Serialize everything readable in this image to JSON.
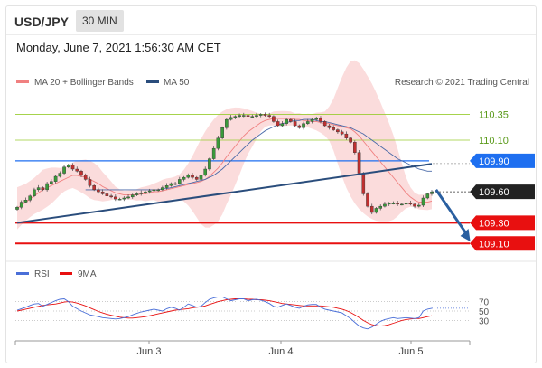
{
  "header": {
    "symbol": "USD/JPY",
    "timeframe": "30 MIN"
  },
  "datetime": "Monday, June 7, 2021 1:56:30 AM CET",
  "legend": {
    "ma20": "MA 20 + Bollinger Bands",
    "ma50": "MA 50",
    "credit": "Research © 2021 Trading Central"
  },
  "rsi_legend": {
    "rsi": "RSI",
    "ma": "9MA"
  },
  "colors": {
    "ma20": "#f08080",
    "ma50": "#2a4d7c",
    "resistance": "#1e6ff0",
    "support": "#e81010",
    "target": "#9acd32",
    "current": "#222222"
  },
  "chart_data": [
    {
      "type": "line",
      "name": "price",
      "ylim": [
        109.05,
        110.45
      ],
      "xticks": [
        "Jun 3",
        "Jun 4",
        "Jun 5"
      ],
      "levels": [
        {
          "value": 110.35,
          "label": "110.35",
          "kind": "target"
        },
        {
          "value": 110.1,
          "label": "110.10",
          "kind": "target"
        },
        {
          "value": 109.9,
          "label": "109.90",
          "kind": "resistance"
        },
        {
          "value": 109.6,
          "label": "109.60",
          "kind": "current"
        },
        {
          "value": 109.3,
          "label": "109.30",
          "kind": "support"
        },
        {
          "value": 109.1,
          "label": "109.10",
          "kind": "support"
        }
      ],
      "trendline": [
        [
          0,
          109.3
        ],
        [
          97,
          109.87
        ]
      ],
      "forecast_arrow": [
        [
          98,
          109.62
        ],
        [
          106,
          109.12
        ]
      ],
      "series": [
        {
          "name": "price",
          "values": [
            109.45,
            109.5,
            109.52,
            109.56,
            109.62,
            109.64,
            109.62,
            109.68,
            109.7,
            109.75,
            109.78,
            109.84,
            109.86,
            109.82,
            109.8,
            109.76,
            109.72,
            109.66,
            109.62,
            109.6,
            109.58,
            109.56,
            109.55,
            109.53,
            109.53,
            109.54,
            109.55,
            109.57,
            109.58,
            109.59,
            109.6,
            109.61,
            109.62,
            109.62,
            109.64,
            109.66,
            109.68,
            109.68,
            109.72,
            109.74,
            109.76,
            109.74,
            109.72,
            109.76,
            109.82,
            109.92,
            110.02,
            110.12,
            110.22,
            110.3,
            110.32,
            110.33,
            110.34,
            110.34,
            110.33,
            110.33,
            110.34,
            110.35,
            110.34,
            110.33,
            110.28,
            110.24,
            110.26,
            110.3,
            110.28,
            110.24,
            110.22,
            110.26,
            110.28,
            110.3,
            110.31,
            110.28,
            110.24,
            110.22,
            110.2,
            110.18,
            110.16,
            110.12,
            110.08,
            109.98,
            109.78,
            109.58,
            109.46,
            109.4,
            109.44,
            109.46,
            109.48,
            109.49,
            109.49,
            109.48,
            109.48,
            109.49,
            109.48,
            109.46,
            109.47,
            109.54,
            109.58,
            109.6
          ]
        },
        {
          "name": "MA 20",
          "values": [
            109.44,
            109.47,
            109.5,
            109.53,
            109.56,
            109.59,
            109.62,
            109.64,
            109.66,
            109.68,
            109.7,
            109.72,
            109.74,
            109.76,
            109.76,
            109.75,
            109.74,
            109.72,
            109.7,
            109.68,
            109.65,
            109.63,
            109.61,
            109.59,
            109.58,
            109.57,
            109.57,
            109.57,
            109.57,
            109.58,
            109.58,
            109.59,
            109.6,
            109.6,
            109.61,
            109.62,
            109.63,
            109.64,
            109.65,
            109.66,
            109.67,
            109.68,
            109.69,
            109.7,
            109.72,
            109.75,
            109.79,
            109.83,
            109.88,
            109.94,
            109.99,
            110.04,
            110.09,
            110.14,
            110.18,
            110.21,
            110.24,
            110.27,
            110.29,
            110.3,
            110.31,
            110.31,
            110.31,
            110.31,
            110.31,
            110.3,
            110.3,
            110.29,
            110.29,
            110.28,
            110.28,
            110.27,
            110.26,
            110.26,
            110.25,
            110.24,
            110.23,
            110.22,
            110.21,
            110.18,
            110.14,
            110.09,
            110.04,
            109.99,
            109.94,
            109.89,
            109.84,
            109.79,
            109.74,
            109.69,
            109.64,
            109.59,
            109.55,
            109.52,
            109.5,
            109.5,
            109.5,
            109.51
          ]
        },
        {
          "name": "MA 50",
          "values": [
            null,
            null,
            null,
            null,
            null,
            null,
            null,
            null,
            null,
            null,
            null,
            null,
            null,
            null,
            null,
            null,
            109.62,
            109.62,
            109.62,
            109.62,
            109.62,
            109.62,
            109.62,
            109.62,
            109.62,
            109.62,
            109.62,
            109.62,
            109.62,
            109.62,
            109.62,
            109.62,
            109.62,
            109.62,
            109.63,
            109.63,
            109.64,
            109.65,
            109.66,
            109.67,
            109.68,
            109.69,
            109.7,
            109.71,
            109.72,
            109.74,
            109.76,
            109.79,
            109.82,
            109.86,
            109.9,
            109.94,
            109.98,
            110.02,
            110.06,
            110.1,
            110.13,
            110.16,
            110.19,
            110.21,
            110.23,
            110.25,
            110.26,
            110.27,
            110.28,
            110.29,
            110.29,
            110.3,
            110.3,
            110.3,
            110.29,
            110.28,
            110.28,
            110.27,
            110.26,
            110.25,
            110.24,
            110.23,
            110.22,
            110.2,
            110.18,
            110.16,
            110.13,
            110.1,
            110.07,
            110.04,
            110.01,
            109.98,
            109.95,
            109.92,
            109.9,
            109.88,
            109.86,
            109.84,
            109.82,
            109.81,
            109.8,
            109.8
          ]
        }
      ]
    },
    {
      "type": "line",
      "name": "RSI",
      "ylim": [
        0,
        100
      ],
      "yticks": [
        {
          "value": 70,
          "label": "70"
        },
        {
          "value": 50,
          "label": "50"
        },
        {
          "value": 30,
          "label": "30"
        }
      ],
      "series": [
        {
          "name": "RSI",
          "values": [
            52,
            55,
            58,
            62,
            65,
            66,
            60,
            64,
            68,
            72,
            75,
            76,
            70,
            60,
            55,
            50,
            46,
            42,
            40,
            38,
            36,
            35,
            34,
            33,
            34,
            36,
            38,
            42,
            45,
            48,
            50,
            52,
            54,
            52,
            50,
            55,
            58,
            56,
            52,
            58,
            65,
            62,
            58,
            60,
            68,
            75,
            78,
            80,
            80,
            76,
            72,
            74,
            76,
            76,
            72,
            74,
            75,
            73,
            70,
            66,
            60,
            58,
            62,
            65,
            62,
            58,
            56,
            60,
            63,
            64,
            64,
            58,
            54,
            52,
            50,
            48,
            46,
            40,
            34,
            26,
            18,
            14,
            12,
            16,
            22,
            28,
            32,
            34,
            36,
            34,
            35,
            36,
            35,
            34,
            36,
            50,
            54,
            56
          ]
        },
        {
          "name": "9MA",
          "values": [
            50,
            52,
            54,
            56,
            58,
            60,
            62,
            63,
            64,
            65,
            67,
            69,
            70,
            69,
            67,
            64,
            61,
            57,
            53,
            49,
            46,
            43,
            41,
            39,
            37,
            36,
            35,
            35,
            36,
            37,
            38,
            40,
            42,
            44,
            46,
            48,
            50,
            52,
            53,
            54,
            55,
            57,
            58,
            59,
            61,
            64,
            67,
            70,
            72,
            74,
            75,
            76,
            76,
            76,
            75,
            75,
            74,
            74,
            73,
            72,
            70,
            68,
            66,
            65,
            64,
            63,
            62,
            61,
            61,
            61,
            61,
            61,
            60,
            59,
            58,
            56,
            54,
            51,
            47,
            42,
            36,
            30,
            25,
            21,
            19,
            18,
            19,
            21,
            24,
            27,
            30,
            32,
            33,
            34,
            34,
            36,
            38,
            40
          ]
        }
      ]
    }
  ]
}
